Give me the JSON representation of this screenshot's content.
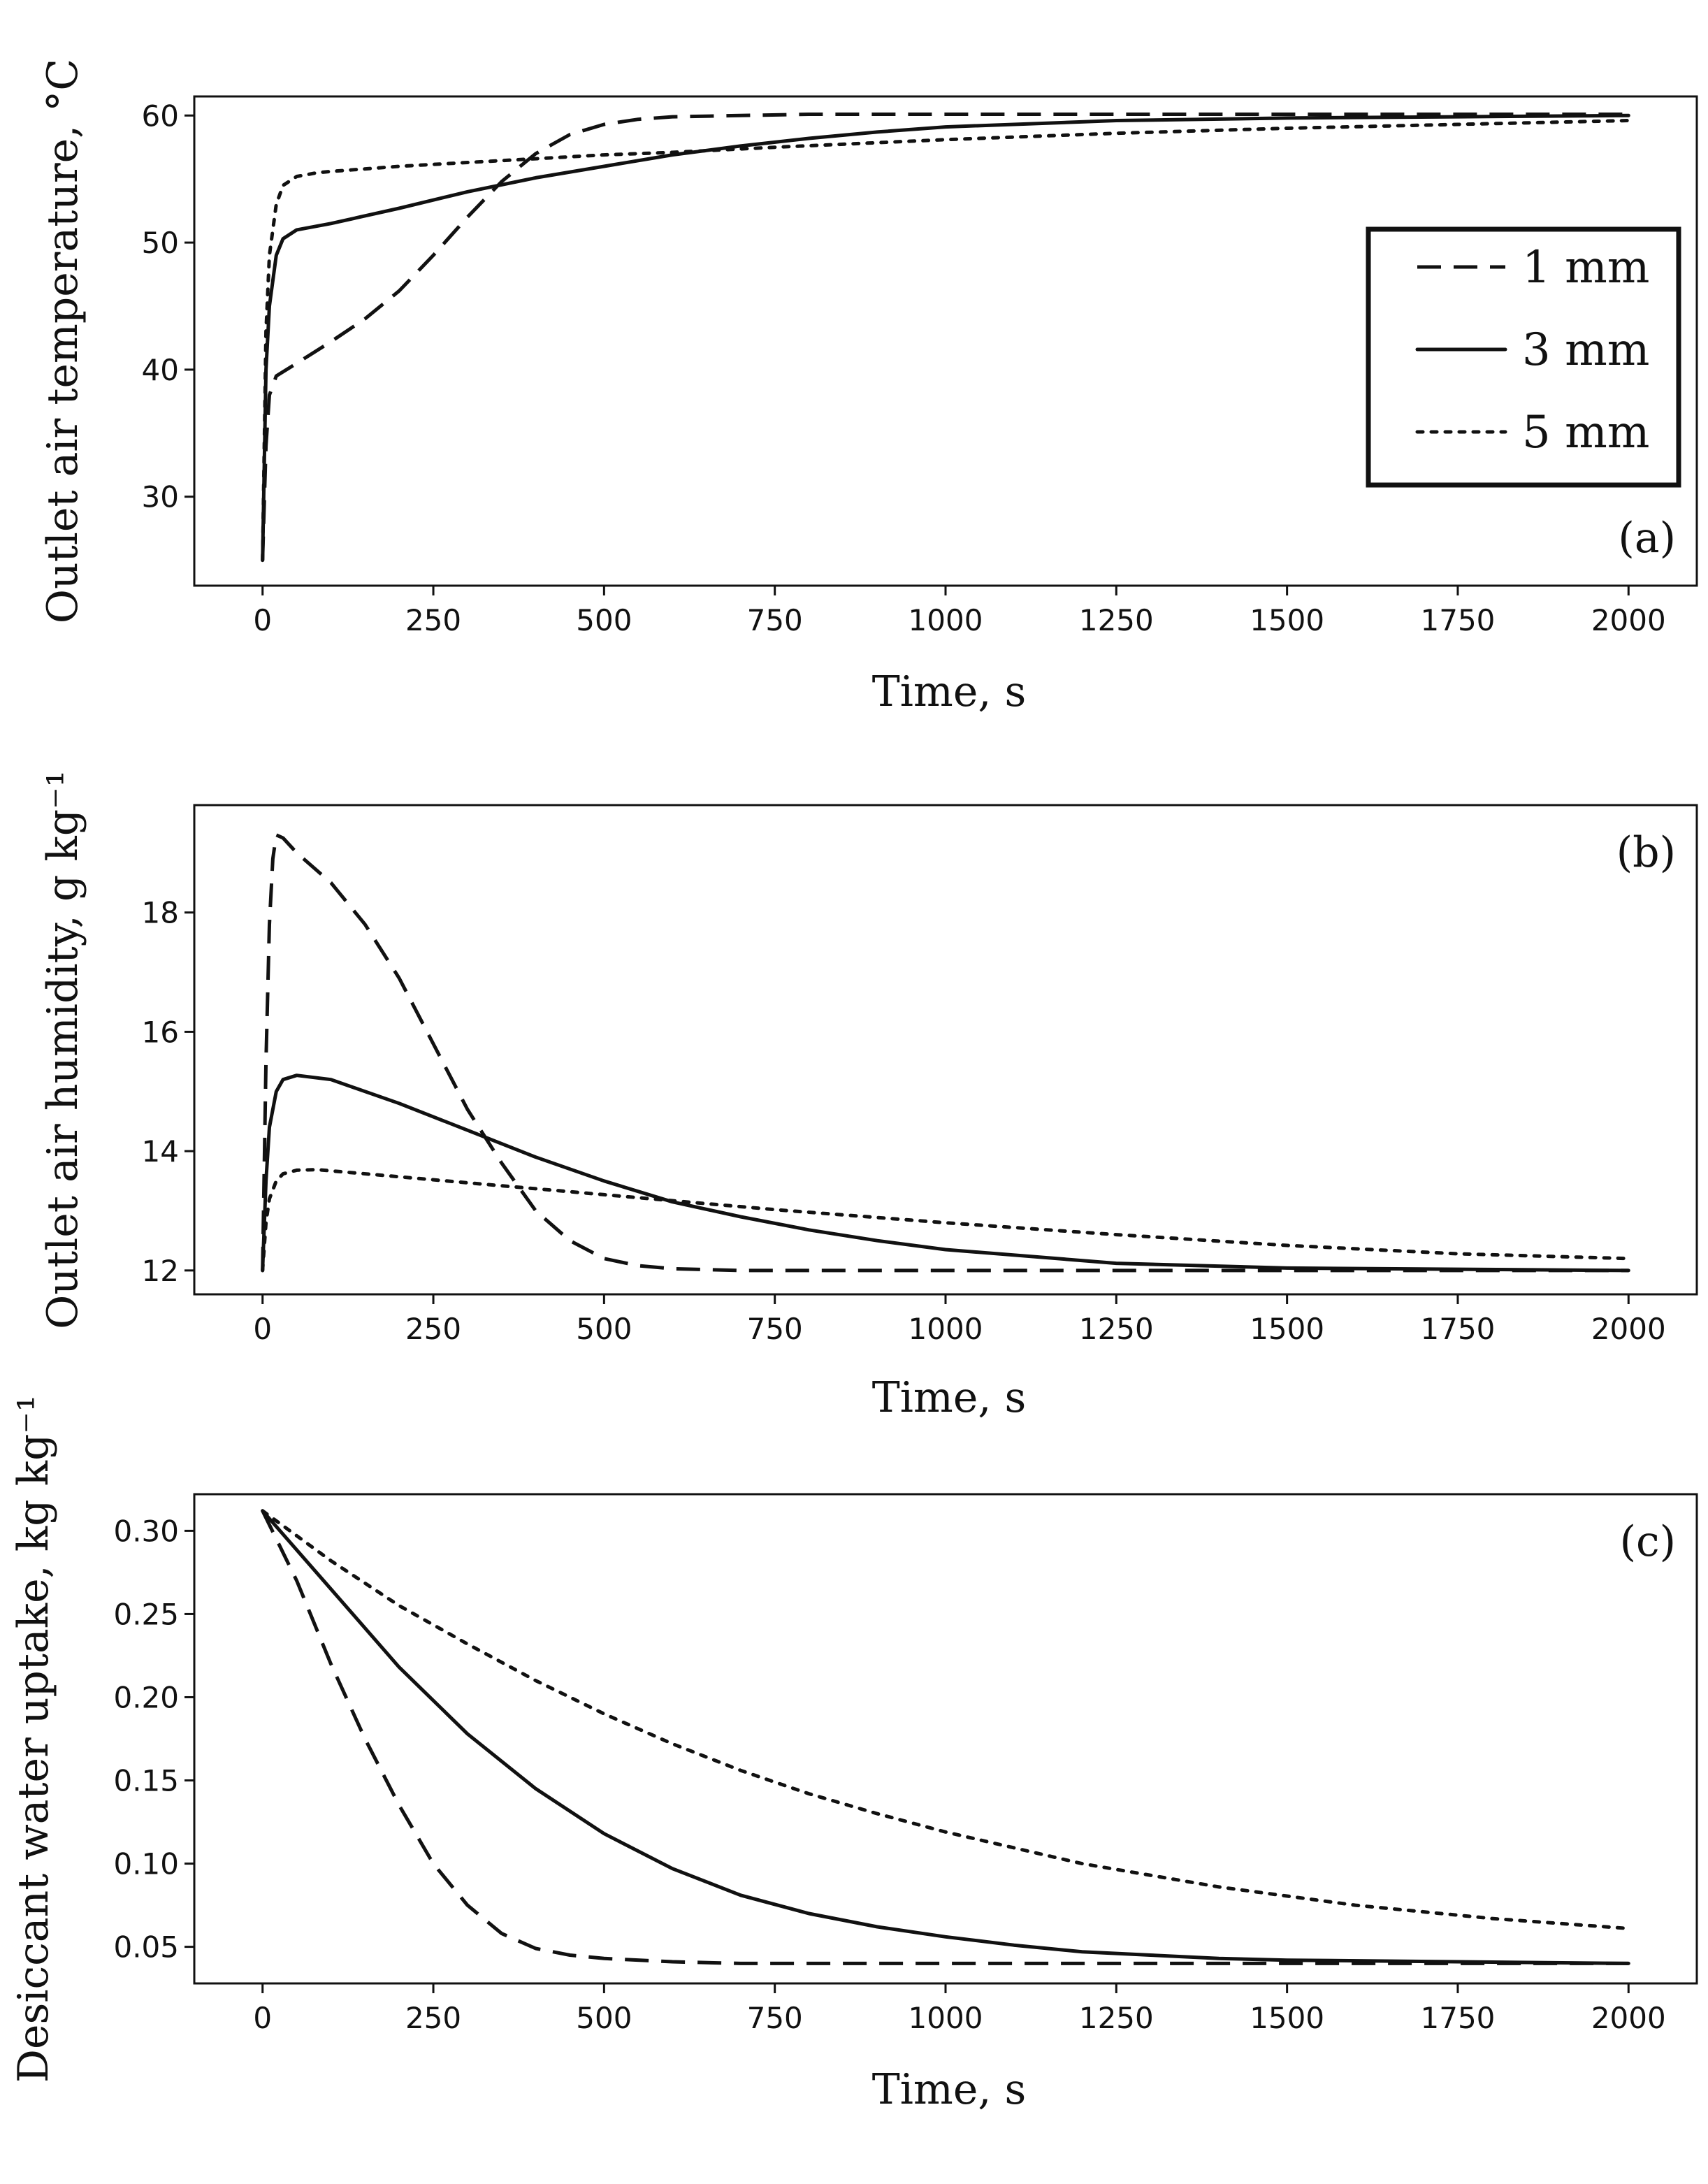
{
  "chart_data": [
    {
      "type": "line",
      "panel": "(a)",
      "xlabel": "Time, s",
      "ylabel": "Outlet air temperature, °C",
      "xlim": [
        -100,
        2100
      ],
      "ylim": [
        23,
        61.5
      ],
      "xticks": [
        0,
        250,
        500,
        750,
        1000,
        1250,
        1500,
        1750,
        2000
      ],
      "yticks": [
        30,
        40,
        50,
        60
      ],
      "legend": {
        "placement": "right",
        "entries": [
          "1 mm",
          "3 mm",
          "5 mm"
        ]
      },
      "series": [
        {
          "name": "1 mm",
          "style": "dashed",
          "x": [
            0,
            5,
            10,
            20,
            50,
            100,
            150,
            200,
            250,
            300,
            350,
            400,
            450,
            500,
            550,
            600,
            700,
            800,
            1000,
            1250,
            1500,
            1750,
            2000
          ],
          "y": [
            25,
            34,
            38,
            39.5,
            40.5,
            42.2,
            44,
            46.2,
            49,
            52,
            54.8,
            57,
            58.5,
            59.3,
            59.7,
            59.9,
            60,
            60.1,
            60.1,
            60.1,
            60.1,
            60.1,
            60.1
          ]
        },
        {
          "name": "3 mm",
          "style": "solid",
          "x": [
            0,
            5,
            10,
            20,
            30,
            50,
            100,
            200,
            300,
            400,
            500,
            600,
            700,
            800,
            900,
            1000,
            1250,
            1500,
            1750,
            2000
          ],
          "y": [
            25,
            40,
            45,
            49,
            50.3,
            51,
            51.5,
            52.7,
            54,
            55.1,
            56,
            56.9,
            57.6,
            58.2,
            58.7,
            59.1,
            59.6,
            59.8,
            59.9,
            60
          ]
        },
        {
          "name": "5 mm",
          "style": "dotted",
          "x": [
            0,
            5,
            10,
            20,
            30,
            50,
            80,
            100,
            200,
            300,
            400,
            500,
            600,
            750,
            1000,
            1250,
            1500,
            1750,
            2000
          ],
          "y": [
            25,
            43,
            49,
            53,
            54.5,
            55.2,
            55.5,
            55.6,
            56,
            56.3,
            56.6,
            56.9,
            57.1,
            57.5,
            58.1,
            58.6,
            59,
            59.3,
            59.6
          ]
        }
      ]
    },
    {
      "type": "line",
      "panel": "(b)",
      "xlabel": "Time, s",
      "ylabel": "Outlet air humidity, g kg⁻¹",
      "xlim": [
        -100,
        2100
      ],
      "ylim": [
        11.6,
        19.8
      ],
      "xticks": [
        0,
        250,
        500,
        750,
        1000,
        1250,
        1500,
        1750,
        2000
      ],
      "yticks": [
        12,
        14,
        16,
        18
      ],
      "series": [
        {
          "name": "1 mm",
          "style": "dashed",
          "x": [
            0,
            5,
            10,
            15,
            20,
            30,
            50,
            100,
            150,
            200,
            250,
            300,
            350,
            400,
            450,
            500,
            550,
            600,
            700,
            800,
            1000,
            2000
          ],
          "y": [
            12,
            15.5,
            17.8,
            18.9,
            19.3,
            19.25,
            19,
            18.5,
            17.8,
            16.9,
            15.8,
            14.7,
            13.8,
            13,
            12.5,
            12.2,
            12.08,
            12.03,
            12,
            12,
            12,
            12
          ]
        },
        {
          "name": "3 mm",
          "style": "solid",
          "x": [
            0,
            5,
            10,
            20,
            30,
            50,
            100,
            200,
            300,
            400,
            500,
            600,
            700,
            800,
            900,
            1000,
            1250,
            1500,
            1750,
            2000
          ],
          "y": [
            12,
            13.5,
            14.4,
            15,
            15.2,
            15.27,
            15.2,
            14.8,
            14.35,
            13.9,
            13.5,
            13.15,
            12.9,
            12.68,
            12.5,
            12.35,
            12.12,
            12.04,
            12.02,
            12
          ]
        },
        {
          "name": "5 mm",
          "style": "dotted",
          "x": [
            0,
            5,
            10,
            20,
            30,
            50,
            80,
            100,
            200,
            300,
            400,
            500,
            600,
            750,
            1000,
            1250,
            1500,
            1750,
            2000
          ],
          "y": [
            12,
            12.8,
            13.2,
            13.5,
            13.62,
            13.68,
            13.69,
            13.67,
            13.57,
            13.47,
            13.37,
            13.27,
            13.17,
            13.02,
            12.8,
            12.6,
            12.42,
            12.28,
            12.2
          ]
        }
      ]
    },
    {
      "type": "line",
      "panel": "(c)",
      "xlabel": "Time, s",
      "ylabel": "Desiccant water uptake, kg kg⁻¹",
      "xlim": [
        -100,
        2100
      ],
      "ylim": [
        0.028,
        0.322
      ],
      "xticks": [
        0,
        250,
        500,
        750,
        1000,
        1250,
        1500,
        1750,
        2000
      ],
      "yticks": [
        0.05,
        0.1,
        0.15,
        0.2,
        0.25,
        0.3
      ],
      "ytick_labels": [
        "0.05",
        "0.10",
        "0.15",
        "0.20",
        "0.25",
        "0.30"
      ],
      "series": [
        {
          "name": "1 mm",
          "style": "dashed",
          "x": [
            0,
            50,
            100,
            150,
            200,
            250,
            300,
            350,
            400,
            450,
            500,
            600,
            700,
            800,
            1000,
            1500,
            2000
          ],
          "y": [
            0.312,
            0.27,
            0.22,
            0.175,
            0.135,
            0.1,
            0.075,
            0.058,
            0.049,
            0.045,
            0.043,
            0.041,
            0.04,
            0.04,
            0.04,
            0.04,
            0.04
          ]
        },
        {
          "name": "3 mm",
          "style": "solid",
          "x": [
            0,
            100,
            200,
            300,
            400,
            500,
            600,
            700,
            800,
            900,
            1000,
            1100,
            1200,
            1300,
            1400,
            1500,
            1750,
            2000
          ],
          "y": [
            0.312,
            0.265,
            0.218,
            0.178,
            0.145,
            0.118,
            0.097,
            0.081,
            0.07,
            0.062,
            0.056,
            0.051,
            0.047,
            0.045,
            0.043,
            0.042,
            0.041,
            0.04
          ]
        },
        {
          "name": "5 mm",
          "style": "dotted",
          "x": [
            0,
            100,
            200,
            300,
            400,
            500,
            600,
            700,
            800,
            900,
            1000,
            1200,
            1400,
            1600,
            1800,
            2000
          ],
          "y": [
            0.312,
            0.282,
            0.255,
            0.232,
            0.21,
            0.19,
            0.172,
            0.156,
            0.142,
            0.13,
            0.119,
            0.1,
            0.086,
            0.075,
            0.067,
            0.061
          ]
        }
      ]
    }
  ]
}
